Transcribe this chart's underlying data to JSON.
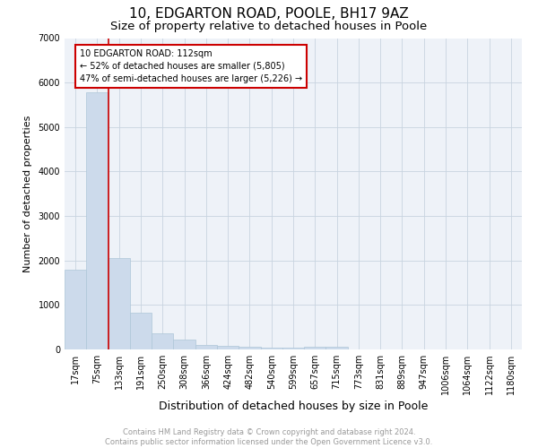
{
  "title1": "10, EDGARTON ROAD, POOLE, BH17 9AZ",
  "title2": "Size of property relative to detached houses in Poole",
  "xlabel": "Distribution of detached houses by size in Poole",
  "ylabel": "Number of detached properties",
  "footnote": "Contains HM Land Registry data © Crown copyright and database right 2024.\nContains public sector information licensed under the Open Government Licence v3.0.",
  "categories": [
    "17sqm",
    "75sqm",
    "133sqm",
    "191sqm",
    "250sqm",
    "308sqm",
    "366sqm",
    "424sqm",
    "482sqm",
    "540sqm",
    "599sqm",
    "657sqm",
    "715sqm",
    "773sqm",
    "831sqm",
    "889sqm",
    "947sqm",
    "1006sqm",
    "1064sqm",
    "1122sqm",
    "1180sqm"
  ],
  "values": [
    1800,
    5780,
    2060,
    820,
    360,
    215,
    110,
    90,
    70,
    50,
    50,
    70,
    70,
    0,
    0,
    0,
    0,
    0,
    0,
    0,
    0
  ],
  "bar_color": "#ccdaeb",
  "bar_edge_color": "#aec6d8",
  "vline_color": "#cc0000",
  "annotation_text": "10 EDGARTON ROAD: 112sqm\n← 52% of detached houses are smaller (5,805)\n47% of semi-detached houses are larger (5,226) →",
  "annotation_box_color": "#cc0000",
  "ylim": [
    0,
    7000
  ],
  "yticks": [
    0,
    1000,
    2000,
    3000,
    4000,
    5000,
    6000,
    7000
  ],
  "grid_color": "#c8d4e0",
  "bg_color": "#eef2f8",
  "title1_fontsize": 11,
  "title2_fontsize": 9.5,
  "xlabel_fontsize": 9,
  "ylabel_fontsize": 8,
  "tick_fontsize": 7,
  "footnote_fontsize": 6,
  "footnote_color": "#999999"
}
